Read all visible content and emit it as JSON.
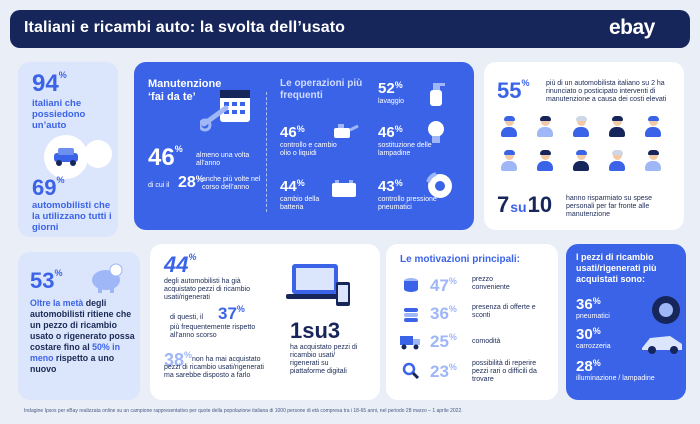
{
  "header": {
    "title": "Italiani e ricambi auto: la svolta dell’usato",
    "logo": "ebay"
  },
  "left_top": {
    "stat1": "94",
    "unit": "%",
    "stat1_text": "italiani che possiedono un’auto",
    "stat2": "69",
    "stat2_text": "automobilisti che la utilizzano tutti i giorni"
  },
  "diy": {
    "title": "Manutenzione ‘fai da te’",
    "stat": "46",
    "stat_text": "almeno una volta all’anno",
    "sub_prefix": "di cui il",
    "sub_stat": "28",
    "sub_text": "anche più volte nel corso dell’anno",
    "ops_title": "Le operazioni più frequenti",
    "ops": [
      {
        "value": "52",
        "label": "lavaggio"
      },
      {
        "value": "46",
        "label": "controllo e cambio olio o liquidi"
      },
      {
        "value": "46",
        "label": "sostituzione delle lampadine"
      },
      {
        "value": "44",
        "label": "cambio della batteria"
      },
      {
        "value": "43",
        "label": "controllo pressione pneumatici"
      }
    ]
  },
  "right_top": {
    "stat": "55",
    "stat_text": "più di un automobilista italiano su 2 ha rinunciato o posticipato interventi di manutenzione a causa dei costi elevati",
    "ratio_a": "7",
    "ratio_su": "su",
    "ratio_b": "10",
    "ratio_text": "hanno risparmiato su spese personali per far fronte alle manutenzione"
  },
  "left_bottom": {
    "stat": "53",
    "lead": "Oltre la metà",
    "text1": "degli automobilisti ritiene che un pezzo di ricambio usato o rigenerato possa costare fino al",
    "highlight": "50% in meno",
    "text2": "rispetto a uno nuovo"
  },
  "purchases": {
    "stat1": "44",
    "stat1_text": "degli automobilisti ha già acquistato pezzi di ricambio usati/rigenerati",
    "sub_prefix": "di questi, il",
    "stat2": "37",
    "stat2_text": "più frequentemente rispetto all’anno scorso",
    "stat3": "38",
    "stat3_text": "non ha mai acquistato pezzi di ricambio usati/rigenerati ma sarebbe disposto a farlo",
    "ratio": "1su3",
    "ratio_text": "ha acquistato pezzi di ricambio usati/ rigenerati su piattaforme digitali"
  },
  "reasons": {
    "title": "Le motivazioni principali:",
    "items": [
      {
        "value": "47",
        "label": "prezzo conveniente"
      },
      {
        "value": "36",
        "label": "presenza di offerte e sconti"
      },
      {
        "value": "25",
        "label": "comodità"
      },
      {
        "value": "23",
        "label": "possibilità di reperire pezzi rari o difficili da trovare"
      }
    ]
  },
  "parts": {
    "title": "I pezzi di ricambio usati/rigenerati più acquistati sono:",
    "items": [
      {
        "value": "36",
        "label": "pneumatici"
      },
      {
        "value": "30",
        "label": "carrozzeria"
      },
      {
        "value": "28",
        "label": "illuminazione / lampadine"
      }
    ]
  },
  "footer": "Indagine Ipsos per eBay realizzata online su un campione rappresentativo per quote della popolazione italiana di 1000 persone di età compresa tra i 18-65 anni, nel periodo 28 marzo – 1 aprile 2022."
}
